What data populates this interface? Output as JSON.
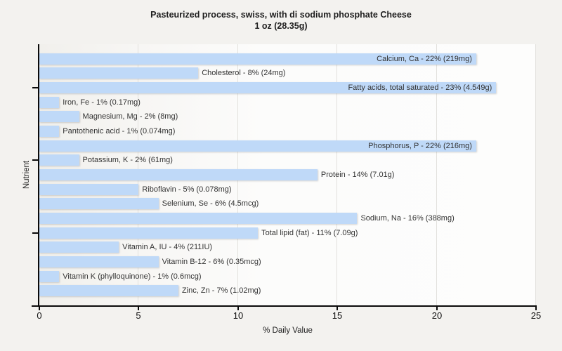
{
  "title": {
    "line1": "Pasteurized process, swiss, with di sodium phosphate Cheese",
    "line2": "1 oz (28.35g)"
  },
  "chart_data": {
    "type": "bar",
    "orientation": "horizontal",
    "title": "Pasteurized process, swiss, with di sodium phosphate Cheese",
    "subtitle": "1 oz (28.35g)",
    "xlabel": "% Daily Value",
    "ylabel": "Nutrient",
    "xlim": [
      0,
      25
    ],
    "x_ticks": [
      0,
      5,
      10,
      15,
      20,
      25
    ],
    "grid": true,
    "legend": "none",
    "bar_color": "#bfd9f8",
    "categories": [
      "Calcium, Ca",
      "Cholesterol",
      "Fatty acids, total saturated",
      "Iron, Fe",
      "Magnesium, Mg",
      "Pantothenic acid",
      "Phosphorus, P",
      "Potassium, K",
      "Protein",
      "Riboflavin",
      "Selenium, Se",
      "Sodium, Na",
      "Total lipid (fat)",
      "Vitamin A, IU",
      "Vitamin B-12",
      "Vitamin K (phylloquinone)",
      "Zinc, Zn"
    ],
    "values": [
      22,
      8,
      23,
      1,
      2,
      1,
      22,
      2,
      14,
      5,
      6,
      16,
      11,
      4,
      6,
      1,
      7
    ],
    "amounts": [
      "219mg",
      "24mg",
      "4.549g",
      "0.17mg",
      "8mg",
      "0.074mg",
      "216mg",
      "61mg",
      "7.01g",
      "0.078mg",
      "4.5mcg",
      "388mg",
      "7.09g",
      "211IU",
      "0.35mcg",
      "0.6mcg",
      "1.02mg"
    ],
    "point_labels": [
      "Calcium, Ca - 22% (219mg)",
      "Cholesterol - 8% (24mg)",
      "Fatty acids, total saturated - 23% (4.549g)",
      "Iron, Fe - 1% (0.17mg)",
      "Magnesium, Mg - 2% (8mg)",
      "Pantothenic acid - 1% (0.074mg)",
      "Phosphorus, P - 22% (216mg)",
      "Potassium, K - 2% (61mg)",
      "Protein - 14% (7.01g)",
      "Riboflavin - 5% (0.078mg)",
      "Selenium, Se - 6% (4.5mcg)",
      "Sodium, Na - 16% (388mg)",
      "Total lipid (fat) - 11% (7.09g)",
      "Vitamin A, IU - 4% (211IU)",
      "Vitamin B-12 - 6% (0.35mcg)",
      "Vitamin K (phylloquinone) - 1% (0.6mcg)",
      "Zinc, Zn - 7% (1.02mg)"
    ],
    "y_tick_indices": [
      2,
      7,
      12
    ]
  }
}
